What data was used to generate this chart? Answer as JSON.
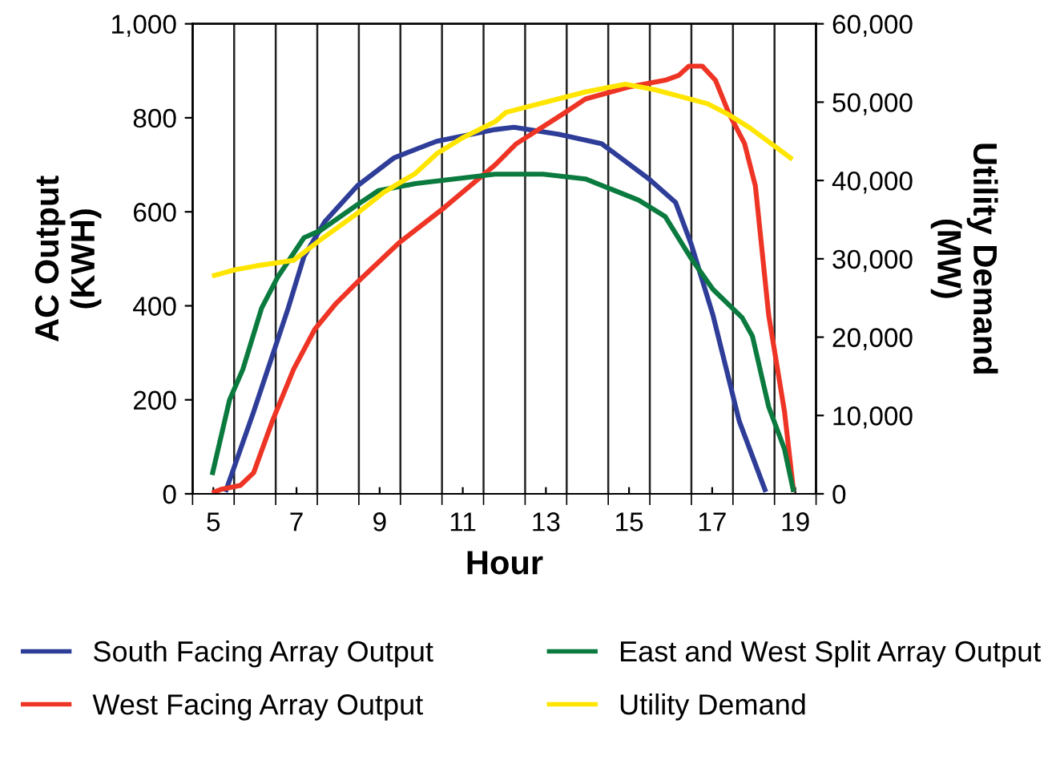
{
  "chart_data": {
    "type": "line",
    "xlabel": "Hour",
    "ylabel": "AC Output\n(KWH)",
    "y2label": "Utility Demand\n(MW)",
    "xlim": [
      4.5,
      19.5
    ],
    "xticks": [
      {
        "value": 4.5,
        "label": null
      },
      {
        "value": 5,
        "label": "5"
      },
      {
        "value": 5.5,
        "label": null
      },
      {
        "value": 6.5,
        "label": null
      },
      {
        "value": 7,
        "label": "7"
      },
      {
        "value": 7.5,
        "label": null
      },
      {
        "value": 8.5,
        "label": null
      },
      {
        "value": 9,
        "label": "9"
      },
      {
        "value": 9.5,
        "label": null
      },
      {
        "value": 10.5,
        "label": null
      },
      {
        "value": 11,
        "label": "11"
      },
      {
        "value": 11.5,
        "label": null
      },
      {
        "value": 12.5,
        "label": null
      },
      {
        "value": 13,
        "label": "13"
      },
      {
        "value": 13.5,
        "label": null
      },
      {
        "value": 14.5,
        "label": null
      },
      {
        "value": 15,
        "label": "15"
      },
      {
        "value": 15.5,
        "label": null
      },
      {
        "value": 16.5,
        "label": null
      },
      {
        "value": 17,
        "label": "17"
      },
      {
        "value": 17.5,
        "label": null
      },
      {
        "value": 18.5,
        "label": null
      },
      {
        "value": 19,
        "label": "19"
      },
      {
        "value": 19.5,
        "label": null
      }
    ],
    "ylim": [
      0,
      1000
    ],
    "yticks": [
      0,
      200,
      400,
      600,
      800,
      {
        "value": 1000,
        "label": "1,000"
      }
    ],
    "y2lim": [
      0,
      60000
    ],
    "y2ticks": [
      0,
      {
        "value": 10000,
        "label": "10,000"
      },
      {
        "value": 20000,
        "label": "20,000"
      },
      {
        "value": 30000,
        "label": "30,000"
      },
      {
        "value": 40000,
        "label": "40,000"
      },
      {
        "value": 50000,
        "label": "50,000"
      },
      {
        "value": 60000,
        "label": "60,000"
      }
    ],
    "grid": "x",
    "legend": "bottom",
    "marker": "none",
    "line_style": "solid",
    "series": [
      {
        "name": "South Facing Array Output",
        "color": "#2e3d98",
        "x": [
          5.29,
          5.97,
          6.48,
          6.8,
          7.18,
          7.69,
          8.46,
          9.35,
          10.37,
          11.78,
          12.23,
          13.31,
          14.34,
          15.48,
          16.12,
          16.5,
          17.02,
          17.65,
          18.29
        ],
        "values": [
          4,
          175,
          310,
          395,
          505,
          580,
          655,
          715,
          750,
          775,
          780,
          765,
          745,
          670,
          620,
          530,
          380,
          155,
          4
        ]
      },
      {
        "name": "West Facing Array Output",
        "color": "#ee3424",
        "x": [
          4.97,
          5.2,
          5.65,
          5.97,
          6.42,
          6.93,
          7.44,
          7.95,
          8.46,
          9.48,
          10.5,
          11.78,
          12.29,
          13.44,
          13.95,
          14.97,
          15.87,
          16.19,
          16.44,
          16.76,
          17.08,
          17.4,
          17.78,
          18.04,
          18.36,
          18.74,
          18.96
        ],
        "values": [
          2,
          10,
          18,
          45,
          155,
          265,
          350,
          405,
          450,
          535,
          605,
          700,
          745,
          810,
          840,
          865,
          880,
          890,
          910,
          910,
          880,
          810,
          745,
          655,
          380,
          175,
          4
        ]
      },
      {
        "name": "East and West Split Array Output",
        "color": "#0a7a3e",
        "x": [
          4.97,
          5.39,
          5.71,
          6.16,
          6.54,
          7.18,
          7.57,
          8.46,
          8.97,
          9.86,
          11.78,
          12.93,
          13.95,
          15.23,
          15.87,
          16.5,
          17.02,
          17.72,
          17.97,
          18.36,
          18.74,
          18.96
        ],
        "values": [
          40,
          200,
          265,
          395,
          460,
          545,
          560,
          615,
          645,
          660,
          680,
          680,
          670,
          625,
          590,
          500,
          435,
          375,
          335,
          185,
          95,
          4
        ]
      },
      {
        "name": "Utility Demand",
        "color": "#ffe500",
        "axis": "y2",
        "x": [
          4.97,
          5.52,
          6.03,
          6.93,
          7.57,
          8.46,
          9.1,
          9.86,
          10.37,
          11.01,
          11.78,
          12.04,
          13.06,
          13.95,
          14.91,
          15.61,
          16.89,
          17.4,
          17.91,
          18.93
        ],
        "values": [
          27800,
          28600,
          29100,
          29800,
          32400,
          35800,
          38500,
          40900,
          43400,
          45500,
          47500,
          48700,
          50100,
          51300,
          52300,
          51600,
          49800,
          48400,
          46700,
          42700
        ]
      }
    ]
  }
}
